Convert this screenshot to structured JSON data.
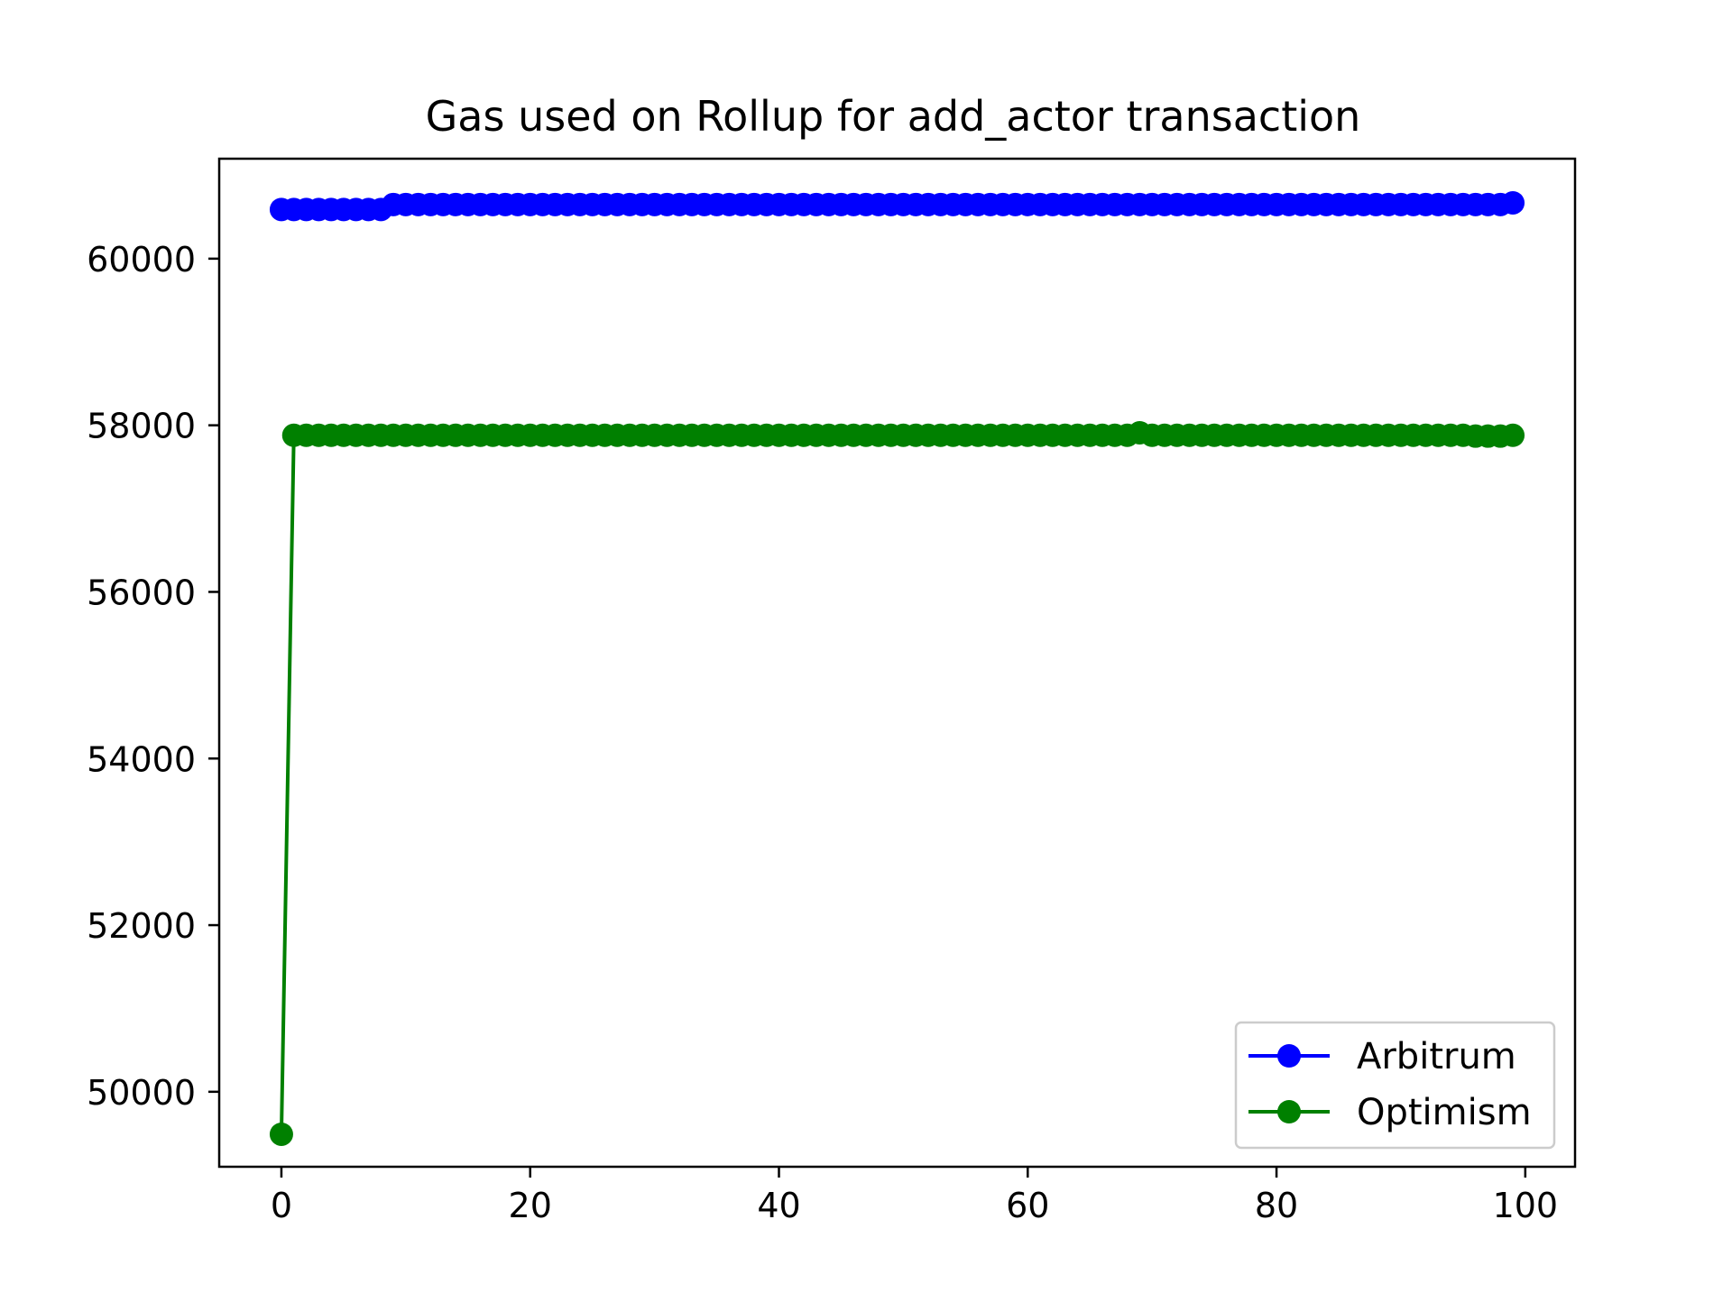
{
  "chart_data": {
    "type": "line",
    "title": "Gas used on Rollup for add_actor transaction",
    "xlabel": "",
    "ylabel": "",
    "xlim": [
      -5,
      104
    ],
    "ylim": [
      49100,
      61200
    ],
    "x_ticks": [
      0,
      20,
      40,
      60,
      80,
      100
    ],
    "y_ticks": [
      50000,
      52000,
      54000,
      56000,
      58000,
      60000
    ],
    "grid": false,
    "legend_position": "lower-right",
    "series": [
      {
        "name": "Arbitrum",
        "color": "#0000ff",
        "marker": "circle",
        "x": [
          0,
          1,
          2,
          3,
          4,
          5,
          6,
          7,
          8,
          9,
          10,
          11,
          12,
          13,
          14,
          15,
          16,
          17,
          18,
          19,
          20,
          21,
          22,
          23,
          24,
          25,
          26,
          27,
          28,
          29,
          30,
          31,
          32,
          33,
          34,
          35,
          36,
          37,
          38,
          39,
          40,
          41,
          42,
          43,
          44,
          45,
          46,
          47,
          48,
          49,
          50,
          51,
          52,
          53,
          54,
          55,
          56,
          57,
          58,
          59,
          60,
          61,
          62,
          63,
          64,
          65,
          66,
          67,
          68,
          69,
          70,
          71,
          72,
          73,
          74,
          75,
          76,
          77,
          78,
          79,
          80,
          81,
          82,
          83,
          84,
          85,
          86,
          87,
          88,
          89,
          90,
          91,
          92,
          93,
          94,
          95,
          96,
          97,
          98,
          99
        ],
        "values": [
          60590,
          60590,
          60590,
          60590,
          60590,
          60590,
          60590,
          60590,
          60590,
          60650,
          60650,
          60650,
          60650,
          60650,
          60650,
          60650,
          60650,
          60650,
          60650,
          60650,
          60650,
          60650,
          60650,
          60650,
          60650,
          60650,
          60650,
          60650,
          60650,
          60650,
          60650,
          60650,
          60650,
          60650,
          60650,
          60650,
          60650,
          60650,
          60650,
          60650,
          60650,
          60650,
          60650,
          60650,
          60650,
          60650,
          60650,
          60650,
          60650,
          60650,
          60650,
          60650,
          60650,
          60650,
          60650,
          60650,
          60650,
          60650,
          60650,
          60650,
          60650,
          60650,
          60650,
          60650,
          60650,
          60650,
          60650,
          60650,
          60650,
          60650,
          60650,
          60650,
          60650,
          60650,
          60650,
          60650,
          60650,
          60650,
          60650,
          60650,
          60650,
          60650,
          60650,
          60650,
          60650,
          60650,
          60650,
          60650,
          60650,
          60650,
          60650,
          60650,
          60650,
          60650,
          60650,
          60650,
          60650,
          60650,
          60650,
          60670
        ]
      },
      {
        "name": "Optimism",
        "color": "#008000",
        "marker": "circle",
        "x": [
          0,
          1,
          2,
          3,
          4,
          5,
          6,
          7,
          8,
          9,
          10,
          11,
          12,
          13,
          14,
          15,
          16,
          17,
          18,
          19,
          20,
          21,
          22,
          23,
          24,
          25,
          26,
          27,
          28,
          29,
          30,
          31,
          32,
          33,
          34,
          35,
          36,
          37,
          38,
          39,
          40,
          41,
          42,
          43,
          44,
          45,
          46,
          47,
          48,
          49,
          50,
          51,
          52,
          53,
          54,
          55,
          56,
          57,
          58,
          59,
          60,
          61,
          62,
          63,
          64,
          65,
          66,
          67,
          68,
          69,
          70,
          71,
          72,
          73,
          74,
          75,
          76,
          77,
          78,
          79,
          80,
          81,
          82,
          83,
          84,
          85,
          86,
          87,
          88,
          89,
          90,
          91,
          92,
          93,
          94,
          95,
          96,
          97,
          98,
          99
        ],
        "values": [
          49490,
          57880,
          57880,
          57880,
          57880,
          57880,
          57880,
          57880,
          57880,
          57880,
          57880,
          57880,
          57880,
          57880,
          57880,
          57880,
          57880,
          57880,
          57880,
          57880,
          57880,
          57880,
          57880,
          57880,
          57880,
          57880,
          57880,
          57880,
          57880,
          57880,
          57880,
          57880,
          57880,
          57880,
          57880,
          57880,
          57880,
          57880,
          57880,
          57880,
          57880,
          57880,
          57880,
          57880,
          57880,
          57880,
          57880,
          57880,
          57880,
          57880,
          57880,
          57880,
          57880,
          57880,
          57880,
          57880,
          57880,
          57880,
          57880,
          57880,
          57880,
          57880,
          57880,
          57880,
          57880,
          57880,
          57880,
          57880,
          57880,
          57910,
          57880,
          57880,
          57880,
          57880,
          57880,
          57880,
          57880,
          57880,
          57880,
          57880,
          57880,
          57880,
          57880,
          57880,
          57880,
          57880,
          57880,
          57880,
          57880,
          57880,
          57880,
          57880,
          57880,
          57880,
          57880,
          57880,
          57870,
          57870,
          57870,
          57880
        ]
      }
    ]
  }
}
